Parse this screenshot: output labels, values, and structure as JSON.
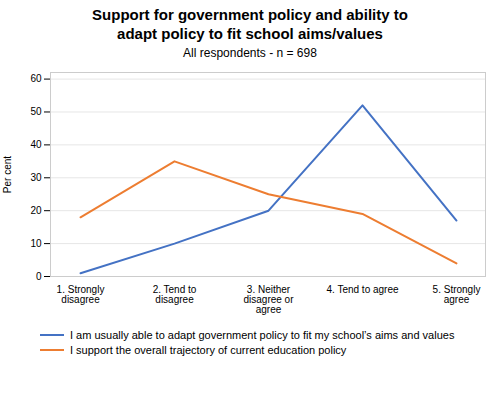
{
  "chart_data": {
    "type": "line",
    "title": "Support for government policy and ability to\nadapt policy to fit school aims/values",
    "subtitle": "All respondents - n = 698",
    "ylabel": "Per cent",
    "categories": [
      "1. Strongly\ndisagree",
      "2. Tend to\ndisagree",
      "3. Neither\ndisagree or\nagree",
      "4. Tend to agree",
      "5. Strongly\nagree"
    ],
    "series": [
      {
        "name": "I am usually able to adapt government policy to fit my school’s aims and values",
        "color": "#4472C4",
        "values": [
          1,
          10,
          20,
          52,
          17
        ]
      },
      {
        "name": "I support the overall trajectory of current education policy",
        "color": "#ED7D31",
        "values": [
          18,
          35,
          25,
          19,
          4
        ]
      }
    ],
    "ylim": [
      0,
      62
    ],
    "yticks": [
      0,
      10,
      20,
      30,
      40,
      50,
      60
    ],
    "grid": true,
    "legend": "lower left"
  }
}
